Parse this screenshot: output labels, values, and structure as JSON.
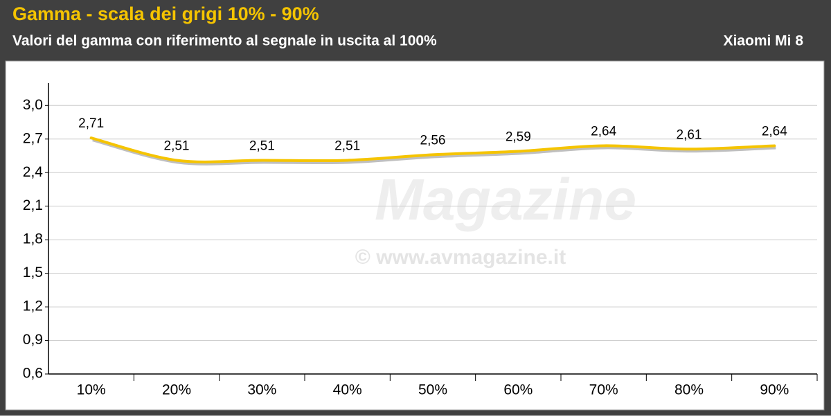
{
  "chart_data": {
    "type": "line",
    "title": "Gamma - scala dei grigi 10% - 90%",
    "subtitle": "Valori del gamma con riferimento al segnale in uscita al 100%",
    "device": "Xiaomi Mi 8",
    "watermark": [
      "Magazine",
      "© www.avmagazine.it"
    ],
    "categories": [
      "10%",
      "20%",
      "30%",
      "40%",
      "50%",
      "60%",
      "70%",
      "80%",
      "90%"
    ],
    "values": [
      2.71,
      2.51,
      2.51,
      2.51,
      2.56,
      2.59,
      2.64,
      2.61,
      2.64
    ],
    "value_labels": [
      "2,71",
      "2,51",
      "2,51",
      "2,51",
      "2,56",
      "2,59",
      "2,64",
      "2,61",
      "2,64"
    ],
    "color": "#f5c400",
    "ylim": [
      0.6,
      3.2
    ],
    "yticks": [
      {
        "value": 0.6,
        "label": "0,6"
      },
      {
        "value": 0.9,
        "label": "0,9"
      },
      {
        "value": 1.2,
        "label": "1,2"
      },
      {
        "value": 1.5,
        "label": "1,5"
      },
      {
        "value": 1.8,
        "label": "1,8"
      },
      {
        "value": 2.1,
        "label": "2,1"
      },
      {
        "value": 2.4,
        "label": "2,4"
      },
      {
        "value": 2.7,
        "label": "2,7"
      },
      {
        "value": 3.0,
        "label": "3,0"
      }
    ],
    "grid": true
  }
}
